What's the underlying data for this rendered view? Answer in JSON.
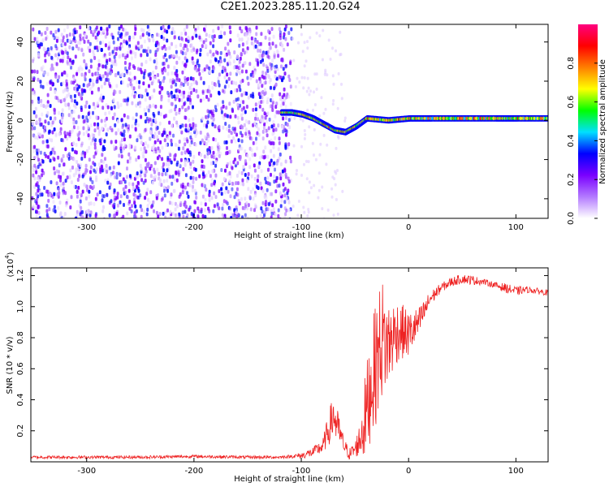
{
  "title": "C2E1.2023.285.11.20.G24",
  "chart_data": [
    {
      "type": "heatmap",
      "xlabel": "Height of straight line (km)",
      "ylabel": "Frequency (Hz)",
      "xlim": [
        -352,
        130
      ],
      "ylim": [
        -50,
        49
      ],
      "xticks": [
        -300,
        -200,
        -100,
        0,
        100
      ],
      "yticks": [
        -40,
        -20,
        0,
        20,
        40
      ],
      "colorbar": {
        "label": "Normalized spectral amplitude",
        "range": [
          0,
          1
        ],
        "ticks": [
          0.0,
          0.2,
          0.4,
          0.6,
          0.8
        ],
        "stops": [
          "#ffffff",
          "#b37aff",
          "#7a00ff",
          "#0000ff",
          "#00e0ff",
          "#00ff00",
          "#ffff00",
          "#ff7f00",
          "#ff0000",
          "#ff0080"
        ]
      },
      "signal_track": [
        {
          "x": -120,
          "f": 4
        },
        {
          "x": -110,
          "f": 4
        },
        {
          "x": -100,
          "f": 3
        },
        {
          "x": -90,
          "f": 1
        },
        {
          "x": -80,
          "f": -2
        },
        {
          "x": -70,
          "f": -5
        },
        {
          "x": -60,
          "f": -6
        },
        {
          "x": -50,
          "f": -3
        },
        {
          "x": -40,
          "f": 1
        },
        {
          "x": -20,
          "f": 0
        },
        {
          "x": 0,
          "f": 1
        },
        {
          "x": 20,
          "f": 1
        },
        {
          "x": 50,
          "f": 1
        },
        {
          "x": 80,
          "f": 1
        },
        {
          "x": 100,
          "f": 1
        },
        {
          "x": 130,
          "f": 1
        }
      ],
      "cutoff_x": -110
    },
    {
      "type": "line",
      "xlabel": "Height of straight line (km)",
      "ylabel": "SNR (10 * v/v)",
      "y_multiplier": "(x10",
      "y_multiplier_exp": "4",
      "y_multiplier_close": ")",
      "xlim": [
        -352,
        130
      ],
      "ylim": [
        0.0,
        1.25
      ],
      "xticks": [
        -300,
        -200,
        -100,
        0,
        100
      ],
      "yticks": [
        0.2,
        0.4,
        0.6,
        0.8,
        1.0,
        1.2
      ],
      "ytick_labels": [
        "0.2",
        "0.4",
        "0.6",
        "0.8",
        "1.0",
        "1.2"
      ],
      "color": "#ee2222",
      "x": [
        -352,
        -300,
        -250,
        -200,
        -150,
        -120,
        -110,
        -100,
        -90,
        -80,
        -70,
        -65,
        -60,
        -55,
        -50,
        -45,
        -40,
        -35,
        -30,
        -25,
        -20,
        -10,
        0,
        10,
        20,
        30,
        40,
        50,
        60,
        70,
        80,
        90,
        100,
        110,
        120,
        130
      ],
      "y": [
        0.03,
        0.03,
        0.03,
        0.035,
        0.03,
        0.03,
        0.035,
        0.04,
        0.06,
        0.1,
        0.3,
        0.2,
        0.1,
        0.05,
        0.08,
        0.15,
        0.3,
        0.5,
        0.65,
        0.8,
        0.75,
        0.85,
        0.82,
        0.9,
        1.05,
        1.12,
        1.16,
        1.18,
        1.17,
        1.16,
        1.14,
        1.12,
        1.1,
        1.11,
        1.1,
        1.09
      ],
      "noise": [
        0.01,
        0.01,
        0.01,
        0.01,
        0.01,
        0.01,
        0.01,
        0.02,
        0.03,
        0.05,
        0.15,
        0.1,
        0.05,
        0.04,
        0.05,
        0.12,
        0.3,
        0.35,
        0.4,
        0.4,
        0.3,
        0.2,
        0.15,
        0.1,
        0.05,
        0.03,
        0.03,
        0.03,
        0.03,
        0.02,
        0.02,
        0.03,
        0.03,
        0.02,
        0.02,
        0.02
      ]
    }
  ]
}
